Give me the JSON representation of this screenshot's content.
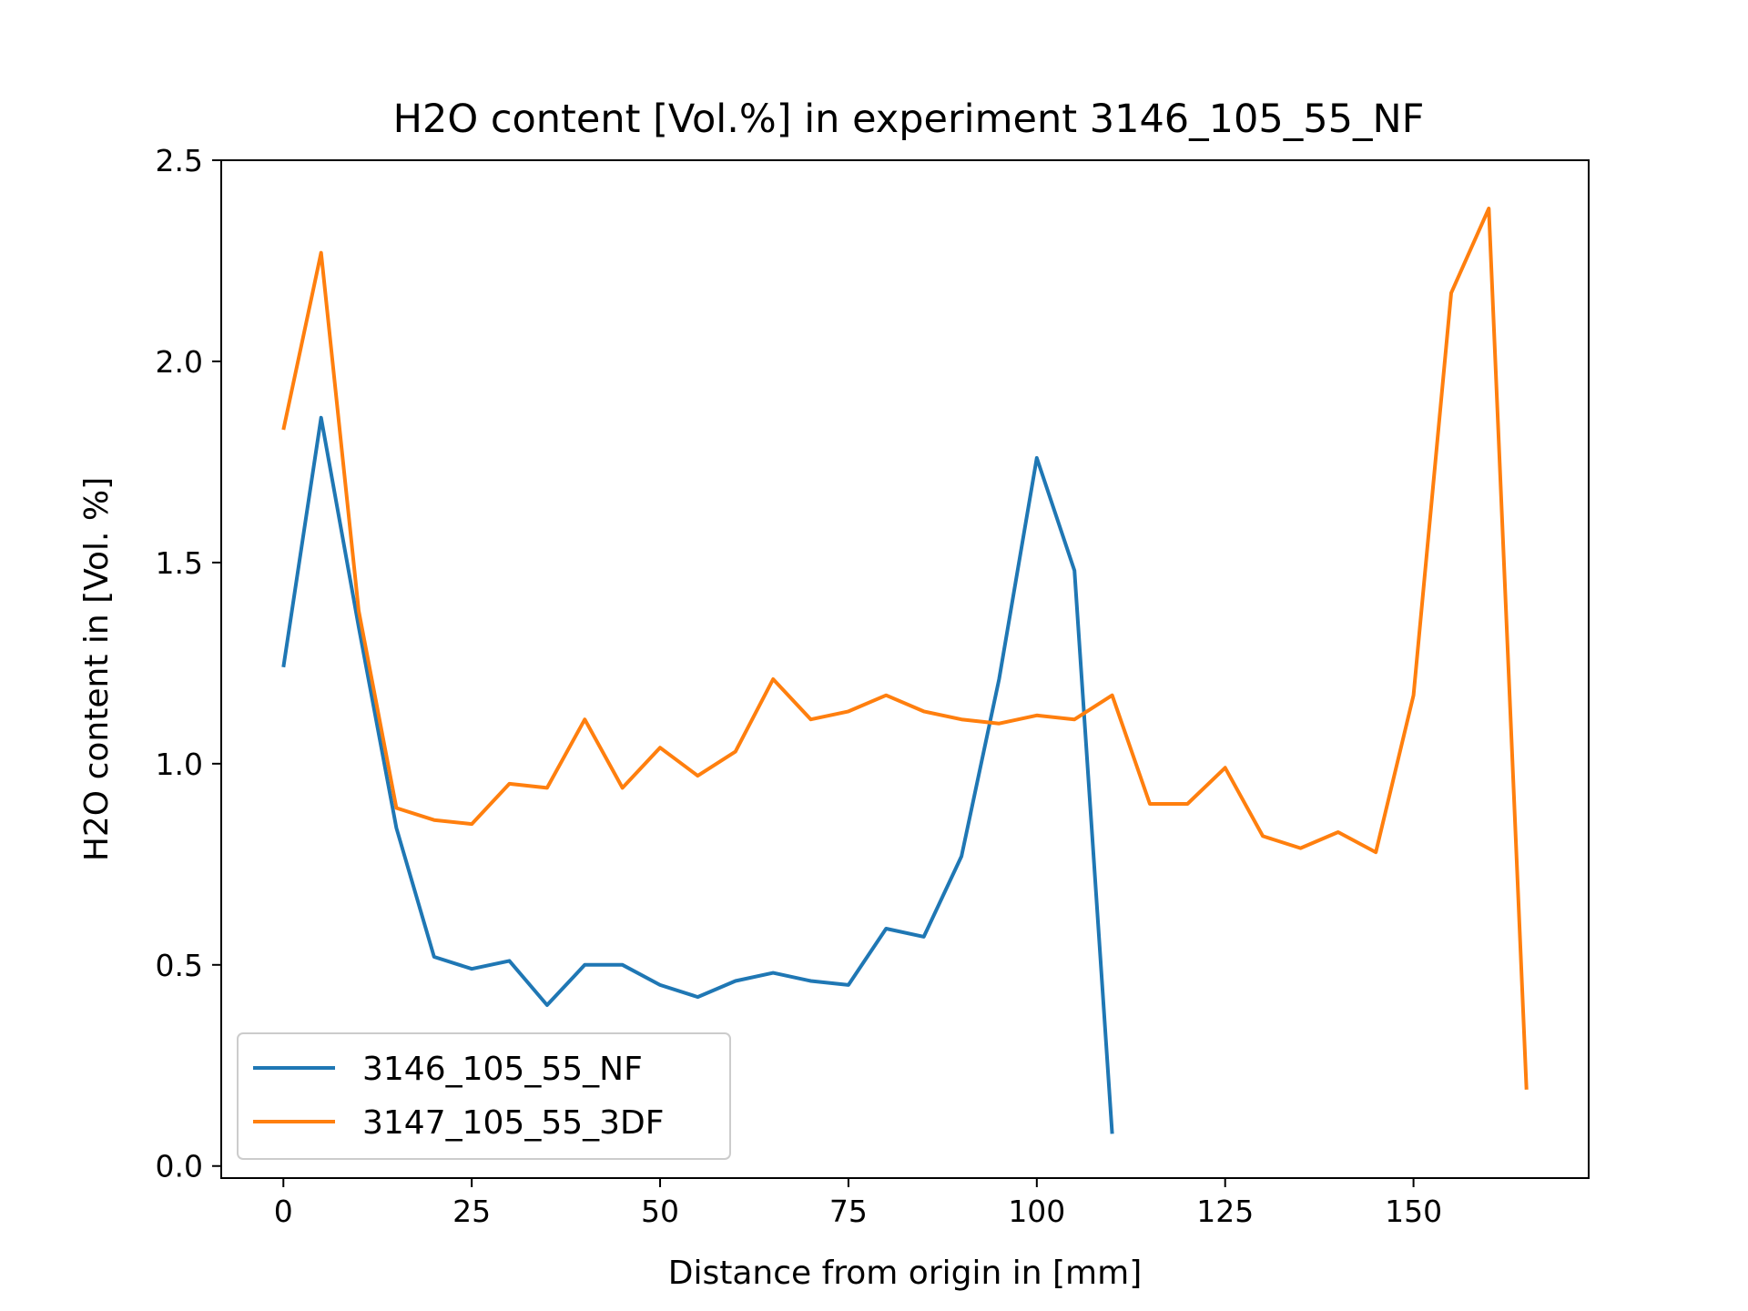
{
  "chart_data": {
    "type": "line",
    "title": "H2O content [Vol.%] in experiment 3146_105_55_NF",
    "xlabel": "Distance from origin in [mm]",
    "ylabel": "H2O content in [Vol. %]",
    "xlim": [
      -8.25,
      173.25
    ],
    "ylim": [
      -0.03,
      2.5
    ],
    "xticks": [
      0,
      25,
      50,
      75,
      100,
      125,
      150
    ],
    "xtick_labels": [
      "0",
      "25",
      "50",
      "75",
      "100",
      "125",
      "150"
    ],
    "yticks": [
      0.0,
      0.5,
      1.0,
      1.5,
      2.0,
      2.5
    ],
    "ytick_labels": [
      "0.0",
      "0.5",
      "1.0",
      "1.5",
      "2.0",
      "2.5"
    ],
    "grid": false,
    "legend_position": "lower-left",
    "series": [
      {
        "name": "3146_105_55_NF",
        "color": "#1f77b4",
        "x": [
          0,
          5,
          10,
          15,
          20,
          25,
          30,
          35,
          40,
          45,
          50,
          55,
          60,
          65,
          70,
          75,
          80,
          85,
          90,
          95,
          100,
          105,
          110
        ],
        "y": [
          1.24,
          1.86,
          1.34,
          0.84,
          0.52,
          0.49,
          0.51,
          0.4,
          0.5,
          0.5,
          0.45,
          0.42,
          0.46,
          0.48,
          0.46,
          0.45,
          0.59,
          0.57,
          0.77,
          1.21,
          1.76,
          1.48,
          0.08
        ]
      },
      {
        "name": "3147_105_55_3DF",
        "color": "#ff7f0e",
        "x": [
          0,
          5,
          10,
          15,
          20,
          25,
          30,
          35,
          40,
          45,
          50,
          55,
          60,
          65,
          70,
          75,
          80,
          85,
          90,
          95,
          100,
          105,
          110,
          115,
          120,
          125,
          130,
          135,
          140,
          145,
          150,
          155,
          160,
          165
        ],
        "y": [
          1.83,
          2.27,
          1.38,
          0.89,
          0.86,
          0.85,
          0.95,
          0.94,
          1.11,
          0.94,
          1.04,
          0.97,
          1.03,
          1.21,
          1.11,
          1.13,
          1.17,
          1.13,
          1.11,
          1.1,
          1.12,
          1.11,
          1.17,
          0.9,
          0.9,
          0.99,
          0.82,
          0.79,
          0.83,
          0.78,
          1.17,
          2.17,
          2.38,
          0.19
        ]
      }
    ]
  }
}
